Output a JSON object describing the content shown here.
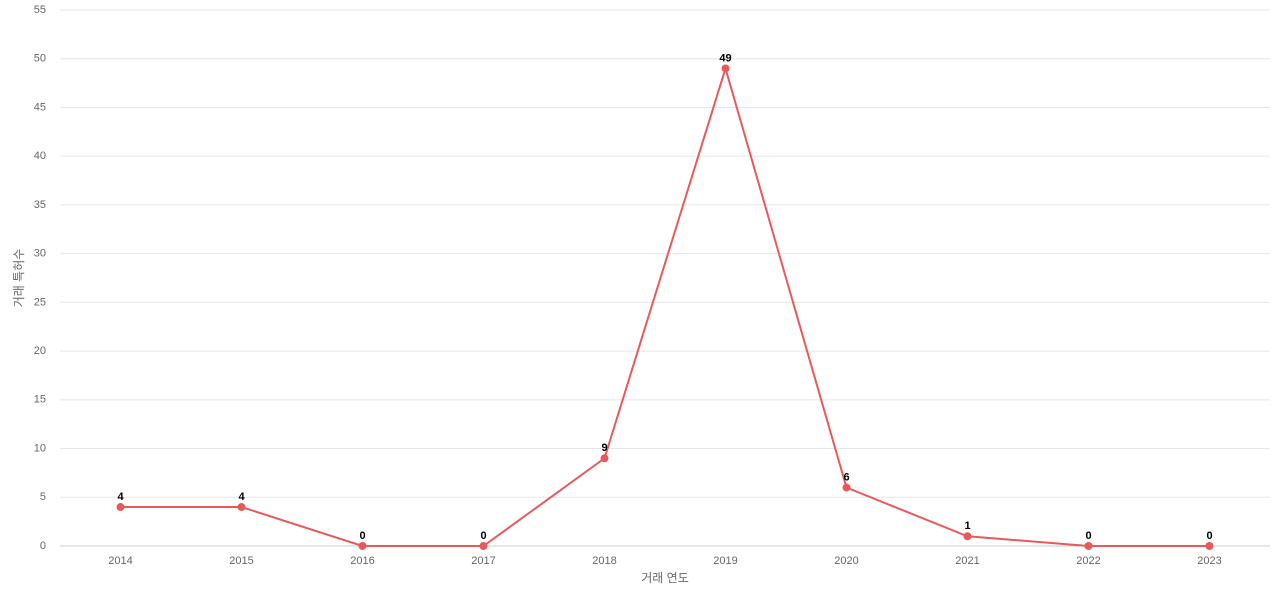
{
  "chart_data": {
    "type": "line",
    "x_label": "거래 연도",
    "y_label": "거래 특허수",
    "categories": [
      "2014",
      "2015",
      "2016",
      "2017",
      "2018",
      "2019",
      "2020",
      "2021",
      "2022",
      "2023"
    ],
    "series": [
      {
        "name": "거래 특허수",
        "color": "#e85a5a",
        "values": [
          4,
          4,
          0,
          0,
          9,
          49,
          6,
          1,
          0,
          0
        ]
      }
    ],
    "ylim": [
      0,
      55
    ],
    "yticks": [
      0,
      5,
      10,
      15,
      20,
      25,
      30,
      35,
      40,
      45,
      50,
      55
    ],
    "grid": true,
    "legend": false
  }
}
